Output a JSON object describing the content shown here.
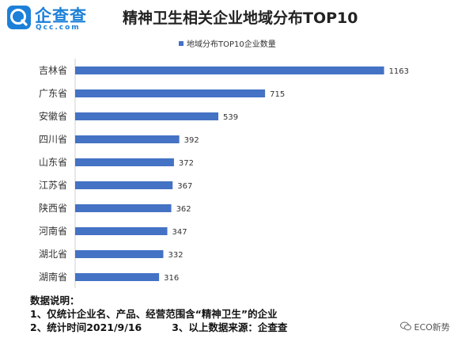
{
  "logo": {
    "text_cn": "企查查",
    "text_en": "Qcc.com",
    "brand_color": "#1c80d8"
  },
  "title": "精神卫生相关企业地域分布TOP10",
  "chart_data": {
    "type": "bar",
    "orientation": "horizontal",
    "title": "精神卫生相关企业地域分布TOP10",
    "categories": [
      "吉林省",
      "广东省",
      "安徽省",
      "四川省",
      "山东省",
      "江苏省",
      "陕西省",
      "河南省",
      "湖北省",
      "湖南省"
    ],
    "series": [
      {
        "name": "地域分布TOP10企业数量",
        "values": [
          1163,
          715,
          539,
          392,
          372,
          367,
          362,
          347,
          332,
          316
        ],
        "color": "#4472c4"
      }
    ],
    "xlim": [
      0,
      1200
    ],
    "grid": false,
    "legend_position": "top"
  },
  "notes": {
    "heading": "数据说明：",
    "line1": "1、仅统计企业名、产品、经营范围含“精神卫生”的企业",
    "line2a": "2、统计时间2021/9/16",
    "line2b": "3、以上数据来源：企查查"
  },
  "watermark": {
    "text": "ECO新势",
    "icon": "wechat-icon"
  }
}
